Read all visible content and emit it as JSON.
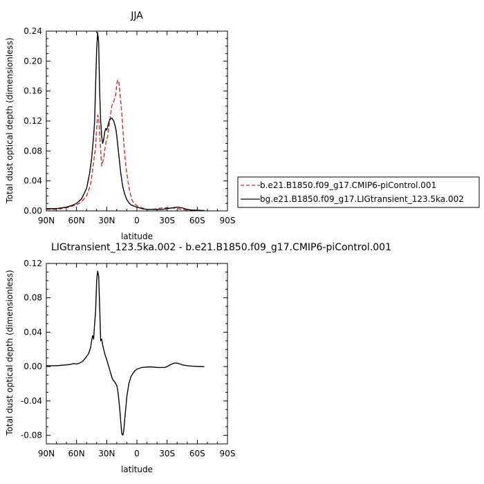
{
  "chart_data": [
    {
      "type": "line",
      "title": "JJA",
      "xlabel": "latitude",
      "ylabel": "Total dust optical depth (dimensionless)",
      "xlim": [
        90,
        -90
      ],
      "ylim": [
        0,
        0.24
      ],
      "xticks": [
        90,
        60,
        30,
        0,
        -30,
        -60,
        -90
      ],
      "xticklabels": [
        "90N",
        "60N",
        "30N",
        "0",
        "30S",
        "60S",
        "90S"
      ],
      "yticks": [
        0,
        0.04,
        0.08,
        0.12,
        0.16,
        0.2,
        0.24
      ],
      "yticklabels": [
        "0.00",
        "0.04",
        "0.08",
        "0.12",
        "0.16",
        "0.20",
        "0.24"
      ],
      "legend": "right",
      "series": [
        {
          "name": "b.e21.B1850.f09_g17.CMIP6-piControl.001",
          "color": "#d62728",
          "dash": true,
          "x": [
            90,
            80,
            75,
            70,
            65,
            60,
            55,
            50,
            46,
            44,
            42,
            41,
            40,
            39,
            38,
            36,
            35,
            33,
            31,
            29,
            27,
            25,
            23,
            21,
            20,
            19,
            18,
            17,
            15,
            13,
            11,
            9,
            7,
            5,
            3,
            0,
            -5,
            -10,
            -15,
            -20,
            -25,
            -30,
            -35,
            -40,
            -45,
            -50,
            -55,
            -60,
            -65,
            -67
          ],
          "y": [
            0.002,
            0.002,
            0.003,
            0.004,
            0.006,
            0.008,
            0.012,
            0.02,
            0.035,
            0.055,
            0.075,
            0.085,
            0.11,
            0.128,
            0.125,
            0.08,
            0.06,
            0.07,
            0.09,
            0.1,
            0.12,
            0.14,
            0.146,
            0.155,
            0.17,
            0.175,
            0.172,
            0.16,
            0.13,
            0.09,
            0.06,
            0.04,
            0.025,
            0.015,
            0.01,
            0.007,
            0.004,
            0.002,
            0.002,
            0.003,
            0.004,
            0.004,
            0.004,
            0.003,
            0.002,
            0.001,
            0.001,
            0.0005,
            0.0005,
            0.0005
          ]
        },
        {
          "name": "bg.e21.B1850.f09_g17.LIGtransient_123.5ka.002",
          "color": "#000000",
          "dash": false,
          "x": [
            90,
            80,
            75,
            70,
            65,
            60,
            55,
            50,
            47,
            45,
            43,
            42,
            41,
            40,
            39,
            38,
            37,
            36,
            35,
            34,
            33,
            32,
            31,
            30,
            29,
            28,
            27,
            25,
            23,
            21,
            20,
            18,
            16,
            14,
            12,
            10,
            8,
            6,
            4,
            2,
            0,
            -5,
            -10,
            -15,
            -20,
            -25,
            -30,
            -35,
            -40,
            -45,
            -50,
            -55,
            -60,
            -65,
            -67
          ],
          "y": [
            0.003,
            0.003,
            0.004,
            0.005,
            0.007,
            0.01,
            0.016,
            0.03,
            0.05,
            0.07,
            0.1,
            0.12,
            0.17,
            0.215,
            0.238,
            0.225,
            0.16,
            0.12,
            0.1,
            0.09,
            0.095,
            0.105,
            0.11,
            0.108,
            0.112,
            0.118,
            0.122,
            0.124,
            0.12,
            0.11,
            0.1,
            0.075,
            0.05,
            0.032,
            0.022,
            0.015,
            0.011,
            0.008,
            0.007,
            0.006,
            0.005,
            0.003,
            0.002,
            0.002,
            0.002,
            0.002,
            0.003,
            0.004,
            0.005,
            0.004,
            0.002,
            0.001,
            0.001,
            0.0005,
            0.0005
          ]
        }
      ]
    },
    {
      "type": "line",
      "title": "LIGtransient_123.5ka.002 - b.e21.B1850.f09_g17.CMIP6-piControl.001",
      "xlabel": "latitude",
      "ylabel": "Total dust optical depth (dimensionless)",
      "xlim": [
        90,
        -90
      ],
      "ylim": [
        -0.09,
        0.12
      ],
      "xticks": [
        90,
        60,
        30,
        0,
        -30,
        -60,
        -90
      ],
      "xticklabels": [
        "90N",
        "60N",
        "30N",
        "0",
        "30S",
        "60S",
        "90S"
      ],
      "yticks": [
        -0.08,
        -0.04,
        0.0,
        0.04,
        0.08,
        0.12
      ],
      "yticklabels": [
        "-0.08",
        "-0.04",
        "0.00",
        "0.04",
        "0.08",
        "0.12"
      ],
      "series": [
        {
          "color": "#000000",
          "dash": false,
          "x": [
            90,
            80,
            75,
            70,
            66,
            63,
            60,
            57,
            54,
            51,
            48,
            46,
            45,
            44,
            43,
            42,
            41,
            40,
            39,
            38,
            37,
            36,
            35,
            34,
            33,
            32,
            30,
            28,
            26,
            25,
            24,
            22,
            20,
            19,
            18,
            17,
            16,
            15,
            14,
            13,
            12,
            11,
            10,
            8,
            6,
            4,
            2,
            0,
            -5,
            -10,
            -15,
            -20,
            -25,
            -28,
            -30,
            -33,
            -35,
            -37,
            -40,
            -43,
            -45,
            -50,
            -55,
            -60,
            -65,
            -67
          ],
          "y": [
            0.001,
            0.001,
            0.0015,
            0.002,
            0.0025,
            0.0035,
            0.003,
            0.004,
            0.006,
            0.01,
            0.015,
            0.022,
            0.03,
            0.036,
            0.032,
            0.05,
            0.065,
            0.1,
            0.111,
            0.105,
            0.07,
            0.03,
            0.032,
            0.025,
            0.02,
            0.015,
            0.008,
            0.0,
            -0.008,
            -0.012,
            -0.015,
            -0.018,
            -0.022,
            -0.028,
            -0.038,
            -0.05,
            -0.065,
            -0.078,
            -0.08,
            -0.074,
            -0.06,
            -0.048,
            -0.035,
            -0.02,
            -0.012,
            -0.008,
            -0.005,
            -0.003,
            -0.001,
            -0.0005,
            -0.0005,
            -0.001,
            -0.001,
            -0.001,
            0.0,
            0.002,
            0.003,
            0.004,
            0.004,
            0.003,
            0.002,
            0.001,
            0.0005,
            0.0002,
            0.0,
            0.0
          ]
        }
      ]
    }
  ]
}
